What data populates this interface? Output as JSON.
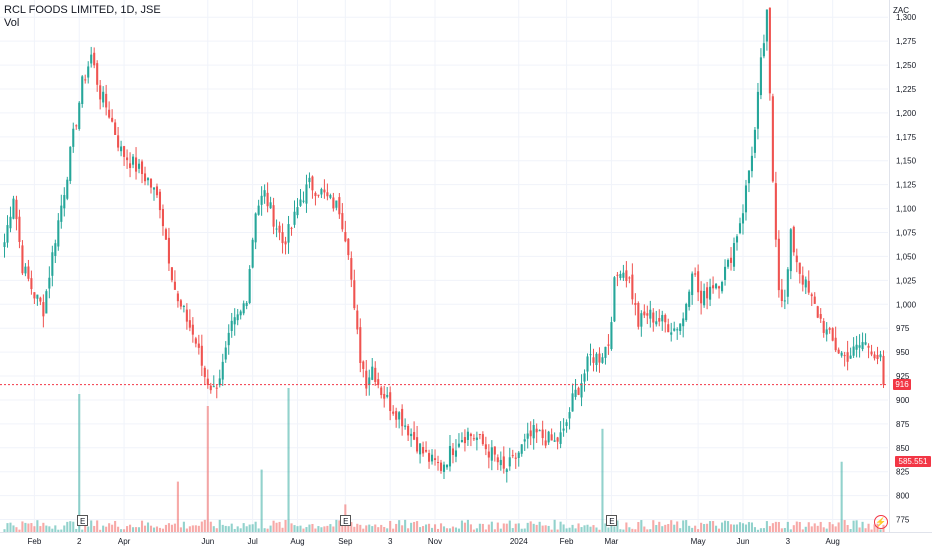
{
  "header": {
    "title": "RCL FOODS LIMITED, 1D, JSE",
    "volume_label": "Vol"
  },
  "axis": {
    "currency": "ZAC"
  },
  "last_price": {
    "label": "916"
  },
  "last_volume": {
    "label": "585.551 K"
  },
  "earnings_marker": "E",
  "colors": {
    "up": "#26a69a",
    "down": "#ef5350",
    "grid": "#f0f3fa",
    "price_line": "#f23645"
  },
  "icons": {
    "goto_realtime": "lightning-icon"
  },
  "chart_data": {
    "type": "candlestick",
    "title": "RCL FOODS LIMITED, 1D, JSE",
    "ylim": [
      762,
      1318
    ],
    "y_ticks": [
      775,
      800,
      825,
      850,
      875,
      900,
      925,
      950,
      975,
      1000,
      1025,
      1050,
      1075,
      1100,
      1125,
      1150,
      1175,
      1200,
      1225,
      1250,
      1275,
      1300
    ],
    "y_tick_labels": [
      "775",
      "800",
      "825",
      "850",
      "875",
      "900",
      "925",
      "950",
      "975",
      "1,000",
      "1,025",
      "1,050",
      "1,075",
      "1,100",
      "1,125",
      "1,150",
      "1,175",
      "1,200",
      "1,225",
      "1,250",
      "1,275",
      "1,300"
    ],
    "x_ticks": [
      {
        "label": "Feb",
        "index": 10
      },
      {
        "label": "2",
        "index": 25
      },
      {
        "label": "Apr",
        "index": 40
      },
      {
        "label": "Jun",
        "index": 68
      },
      {
        "label": "Jul",
        "index": 83
      },
      {
        "label": "Aug",
        "index": 98
      },
      {
        "label": "Sep",
        "index": 114
      },
      {
        "label": "3",
        "index": 129
      },
      {
        "label": "Nov",
        "index": 144
      },
      {
        "label": "2024",
        "index": 172
      },
      {
        "label": "Feb",
        "index": 188
      },
      {
        "label": "Mar",
        "index": 203
      },
      {
        "label": "May",
        "index": 232
      },
      {
        "label": "Jun",
        "index": 247
      },
      {
        "label": "3",
        "index": 262
      },
      {
        "label": "Aug",
        "index": 277
      }
    ],
    "earnings_index": [
      26,
      114,
      203
    ],
    "last_price": 916,
    "close_anchors": [
      [
        0,
        1065
      ],
      [
        3,
        1115
      ],
      [
        6,
        1040
      ],
      [
        10,
        1010
      ],
      [
        13,
        995
      ],
      [
        17,
        1070
      ],
      [
        20,
        1120
      ],
      [
        23,
        1175
      ],
      [
        26,
        1230
      ],
      [
        29,
        1260
      ],
      [
        32,
        1220
      ],
      [
        35,
        1200
      ],
      [
        39,
        1160
      ],
      [
        42,
        1150
      ],
      [
        45,
        1140
      ],
      [
        48,
        1130
      ],
      [
        52,
        1105
      ],
      [
        55,
        1050
      ],
      [
        58,
        1000
      ],
      [
        61,
        985
      ],
      [
        64,
        960
      ],
      [
        67,
        925
      ],
      [
        70,
        910
      ],
      [
        73,
        935
      ],
      [
        76,
        975
      ],
      [
        79,
        990
      ],
      [
        81,
        1010
      ],
      [
        84,
        1100
      ],
      [
        87,
        1115
      ],
      [
        90,
        1090
      ],
      [
        93,
        1065
      ],
      [
        96,
        1080
      ],
      [
        99,
        1110
      ],
      [
        102,
        1125
      ],
      [
        105,
        1120
      ],
      [
        108,
        1110
      ],
      [
        112,
        1100
      ],
      [
        115,
        1060
      ],
      [
        117,
        990
      ],
      [
        119,
        945
      ],
      [
        121,
        920
      ],
      [
        123,
        935
      ],
      [
        126,
        910
      ],
      [
        129,
        895
      ],
      [
        132,
        885
      ],
      [
        134,
        875
      ],
      [
        137,
        860
      ],
      [
        140,
        845
      ],
      [
        143,
        835
      ],
      [
        146,
        830
      ],
      [
        149,
        845
      ],
      [
        152,
        860
      ],
      [
        155,
        865
      ],
      [
        158,
        860
      ],
      [
        161,
        850
      ],
      [
        164,
        840
      ],
      [
        167,
        825
      ],
      [
        170,
        835
      ],
      [
        173,
        850
      ],
      [
        177,
        865
      ],
      [
        181,
        860
      ],
      [
        184,
        855
      ],
      [
        187,
        865
      ],
      [
        190,
        900
      ],
      [
        193,
        920
      ],
      [
        196,
        945
      ],
      [
        199,
        945
      ],
      [
        202,
        960
      ],
      [
        204,
        1020
      ],
      [
        206,
        1040
      ],
      [
        209,
        1025
      ],
      [
        212,
        980
      ],
      [
        215,
        990
      ],
      [
        218,
        985
      ],
      [
        221,
        980
      ],
      [
        224,
        975
      ],
      [
        227,
        985
      ],
      [
        230,
        1040
      ],
      [
        233,
        1000
      ],
      [
        236,
        1020
      ],
      [
        239,
        1025
      ],
      [
        242,
        1040
      ],
      [
        245,
        1075
      ],
      [
        247,
        1100
      ],
      [
        249,
        1140
      ],
      [
        251,
        1180
      ],
      [
        253,
        1250
      ],
      [
        255,
        1300
      ],
      [
        257,
        1130
      ],
      [
        259,
        1020
      ],
      [
        261,
        1000
      ],
      [
        263,
        1070
      ],
      [
        266,
        1035
      ],
      [
        269,
        1010
      ],
      [
        272,
        990
      ],
      [
        275,
        970
      ],
      [
        278,
        955
      ],
      [
        281,
        945
      ],
      [
        284,
        950
      ],
      [
        287,
        960
      ],
      [
        290,
        955
      ],
      [
        293,
        940
      ],
      [
        294,
        916
      ]
    ],
    "volume": {
      "ylim": [
        0,
        1500000
      ],
      "typical": 60000,
      "spikes": [
        {
          "index": 25,
          "value": 1150000
        },
        {
          "index": 58,
          "value": 420000
        },
        {
          "index": 68,
          "value": 1050000
        },
        {
          "index": 86,
          "value": 520000
        },
        {
          "index": 95,
          "value": 1200000
        },
        {
          "index": 114,
          "value": 230000
        },
        {
          "index": 200,
          "value": 860000
        },
        {
          "index": 280,
          "value": 585551
        }
      ]
    }
  }
}
